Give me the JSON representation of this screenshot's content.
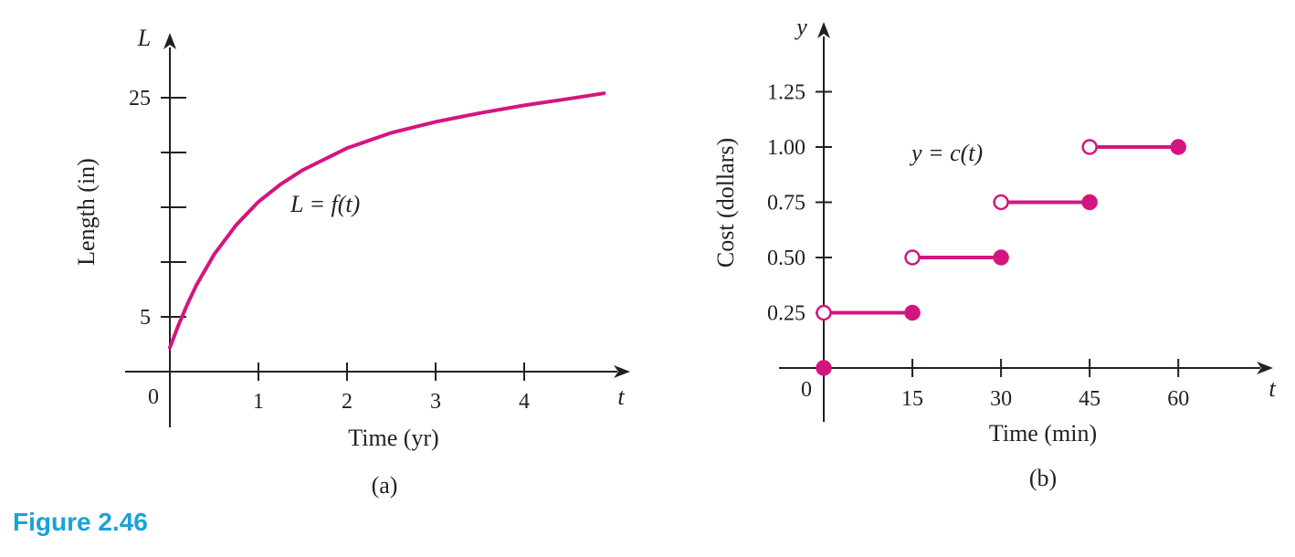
{
  "colors": {
    "accent": "#d4157f",
    "axis": "#231f20",
    "caption": "#1ba1d8"
  },
  "figure_caption": "Figure 2.46",
  "chart_data": [
    {
      "type": "line",
      "panel_label": "(a)",
      "xlabel": "Time (yr)",
      "ylabel": "Length (in)",
      "x_axis_var": "t",
      "y_axis_var": "L",
      "origin_label": "0",
      "curve_label": "L = f(t)",
      "xlim": [
        0,
        5
      ],
      "ylim": [
        0,
        27
      ],
      "x_ticks": [
        1,
        2,
        3,
        4
      ],
      "x_tick_labels": [
        "1",
        "2",
        "3",
        "4"
      ],
      "y_ticks": [
        5,
        10,
        15,
        20,
        25
      ],
      "y_tick_labels": [
        "5",
        "",
        "",
        "",
        "25"
      ],
      "series": [
        {
          "x": [
            0,
            0.1,
            0.2,
            0.3,
            0.5,
            0.75,
            1,
            1.25,
            1.5,
            2,
            2.5,
            3,
            3.5,
            4,
            4.5,
            4.9
          ],
          "y": [
            2.2,
            4.3,
            6.2,
            7.9,
            10.7,
            13.4,
            15.5,
            17.1,
            18.4,
            20.4,
            21.8,
            22.8,
            23.6,
            24.3,
            24.9,
            25.4
          ]
        }
      ]
    },
    {
      "type": "step",
      "panel_label": "(b)",
      "xlabel": "Time (min)",
      "ylabel": "Cost (dollars)",
      "x_axis_var": "t",
      "y_axis_var": "y",
      "origin_label": "0",
      "curve_label": "y = c(t)",
      "xlim": [
        0,
        75
      ],
      "ylim": [
        0,
        1.45
      ],
      "x_ticks": [
        15,
        30,
        45,
        60
      ],
      "x_tick_labels": [
        "15",
        "30",
        "45",
        "60"
      ],
      "y_ticks": [
        0.25,
        0.5,
        0.75,
        1.0,
        1.25
      ],
      "y_tick_labels": [
        "0.25",
        "0.50",
        "0.75",
        "1.00",
        "1.25"
      ],
      "points": [
        {
          "x": 0,
          "y": 0,
          "closed": true
        }
      ],
      "segments": [
        {
          "x_start": 0,
          "x_end": 15,
          "y": 0.25,
          "start_closed": false,
          "end_closed": true
        },
        {
          "x_start": 15,
          "x_end": 30,
          "y": 0.5,
          "start_closed": false,
          "end_closed": true
        },
        {
          "x_start": 30,
          "x_end": 45,
          "y": 0.75,
          "start_closed": false,
          "end_closed": true
        },
        {
          "x_start": 45,
          "x_end": 60,
          "y": 1.0,
          "start_closed": false,
          "end_closed": true
        }
      ]
    }
  ]
}
